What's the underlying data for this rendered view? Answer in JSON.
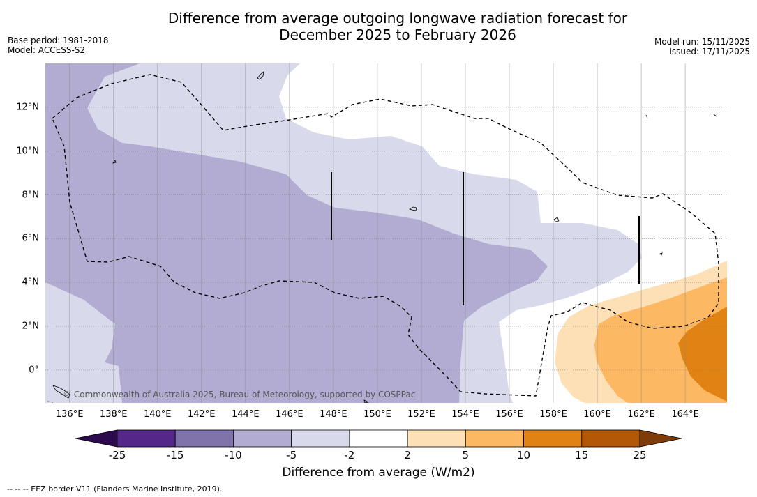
{
  "title": {
    "line1": "Difference from average outgoing longwave radiation forecast for",
    "line2": "December 2025 to February 2026"
  },
  "meta": {
    "base_period": "Base period: 1981-2018",
    "model": "Model: ACCESS-S2",
    "model_run": "Model run: 15/11/2025",
    "issued": "Issued: 17/11/2025"
  },
  "map": {
    "lon_labels": [
      "136°E",
      "138°E",
      "140°E",
      "142°E",
      "144°E",
      "146°E",
      "148°E",
      "150°E",
      "152°E",
      "154°E",
      "156°E",
      "158°E",
      "160°E",
      "162°E",
      "164°E"
    ],
    "lat_labels": [
      "12°N",
      "10°N",
      "8°N",
      "6°N",
      "4°N",
      "2°N",
      "0°"
    ],
    "lon_range": [
      134.9,
      165.9
    ],
    "lat_range": [
      -1.5,
      14
    ],
    "copyright": "© Commonwealth of Australia 2025, Bureau of Meteorology, supported by COSPPac"
  },
  "colorbar": {
    "ticks": [
      "-25",
      "-15",
      "-10",
      "-5",
      "-2",
      "2",
      "5",
      "10",
      "15",
      "25"
    ],
    "colors": [
      "#2d0a4e",
      "#542788",
      "#8073ac",
      "#b2abd2",
      "#d8daeb",
      "#ffffff",
      "#fee0b6",
      "#fdb863",
      "#e08214",
      "#b35806",
      "#7f3b08"
    ],
    "label": "Difference from average (W/m2)"
  },
  "footer": "--  --  -- EEZ border V11 (Flanders Marine Institute, 2019)."
}
